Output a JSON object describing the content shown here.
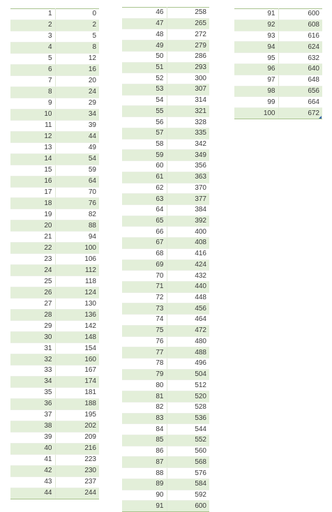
{
  "tables": [
    {
      "rows": [
        [
          "1",
          "0"
        ],
        [
          "2",
          "2"
        ],
        [
          "3",
          "5"
        ],
        [
          "4",
          "8"
        ],
        [
          "5",
          "12"
        ],
        [
          "6",
          "16"
        ],
        [
          "7",
          "20"
        ],
        [
          "8",
          "24"
        ],
        [
          "9",
          "29"
        ],
        [
          "10",
          "34"
        ],
        [
          "11",
          "39"
        ],
        [
          "12",
          "44"
        ],
        [
          "13",
          "49"
        ],
        [
          "14",
          "54"
        ],
        [
          "15",
          "59"
        ],
        [
          "16",
          "64"
        ],
        [
          "17",
          "70"
        ],
        [
          "18",
          "76"
        ],
        [
          "19",
          "82"
        ],
        [
          "20",
          "88"
        ],
        [
          "21",
          "94"
        ],
        [
          "22",
          "100"
        ],
        [
          "23",
          "106"
        ],
        [
          "24",
          "112"
        ],
        [
          "25",
          "118"
        ],
        [
          "26",
          "124"
        ],
        [
          "27",
          "130"
        ],
        [
          "28",
          "136"
        ],
        [
          "29",
          "142"
        ],
        [
          "30",
          "148"
        ],
        [
          "31",
          "154"
        ],
        [
          "32",
          "160"
        ],
        [
          "33",
          "167"
        ],
        [
          "34",
          "174"
        ],
        [
          "35",
          "181"
        ],
        [
          "36",
          "188"
        ],
        [
          "37",
          "195"
        ],
        [
          "38",
          "202"
        ],
        [
          "39",
          "209"
        ],
        [
          "40",
          "216"
        ],
        [
          "41",
          "223"
        ],
        [
          "42",
          "230"
        ],
        [
          "43",
          "237"
        ],
        [
          "44",
          "244"
        ]
      ]
    },
    {
      "rows": [
        [
          "46",
          "258"
        ],
        [
          "47",
          "265"
        ],
        [
          "48",
          "272"
        ],
        [
          "49",
          "279"
        ],
        [
          "50",
          "286"
        ],
        [
          "51",
          "293"
        ],
        [
          "52",
          "300"
        ],
        [
          "53",
          "307"
        ],
        [
          "54",
          "314"
        ],
        [
          "55",
          "321"
        ],
        [
          "56",
          "328"
        ],
        [
          "57",
          "335"
        ],
        [
          "58",
          "342"
        ],
        [
          "59",
          "349"
        ],
        [
          "60",
          "356"
        ],
        [
          "61",
          "363"
        ],
        [
          "62",
          "370"
        ],
        [
          "63",
          "377"
        ],
        [
          "64",
          "384"
        ],
        [
          "65",
          "392"
        ],
        [
          "66",
          "400"
        ],
        [
          "67",
          "408"
        ],
        [
          "68",
          "416"
        ],
        [
          "69",
          "424"
        ],
        [
          "70",
          "432"
        ],
        [
          "71",
          "440"
        ],
        [
          "72",
          "448"
        ],
        [
          "73",
          "456"
        ],
        [
          "74",
          "464"
        ],
        [
          "75",
          "472"
        ],
        [
          "76",
          "480"
        ],
        [
          "77",
          "488"
        ],
        [
          "78",
          "496"
        ],
        [
          "79",
          "504"
        ],
        [
          "80",
          "512"
        ],
        [
          "81",
          "520"
        ],
        [
          "82",
          "528"
        ],
        [
          "83",
          "536"
        ],
        [
          "84",
          "544"
        ],
        [
          "85",
          "552"
        ],
        [
          "86",
          "560"
        ],
        [
          "87",
          "568"
        ],
        [
          "88",
          "576"
        ],
        [
          "89",
          "584"
        ],
        [
          "90",
          "592"
        ],
        [
          "91",
          "600"
        ]
      ]
    },
    {
      "rows": [
        [
          "91",
          "600"
        ],
        [
          "92",
          "608"
        ],
        [
          "93",
          "616"
        ],
        [
          "94",
          "624"
        ],
        [
          "95",
          "632"
        ],
        [
          "96",
          "640"
        ],
        [
          "97",
          "648"
        ],
        [
          "98",
          "656"
        ],
        [
          "99",
          "664"
        ],
        [
          "100",
          "672"
        ]
      ]
    }
  ],
  "colors": {
    "band_fill": "#e3efd9",
    "border": "#a9c48e",
    "text": "#3a3a3a",
    "resize_handle": "#2e5fa8"
  }
}
